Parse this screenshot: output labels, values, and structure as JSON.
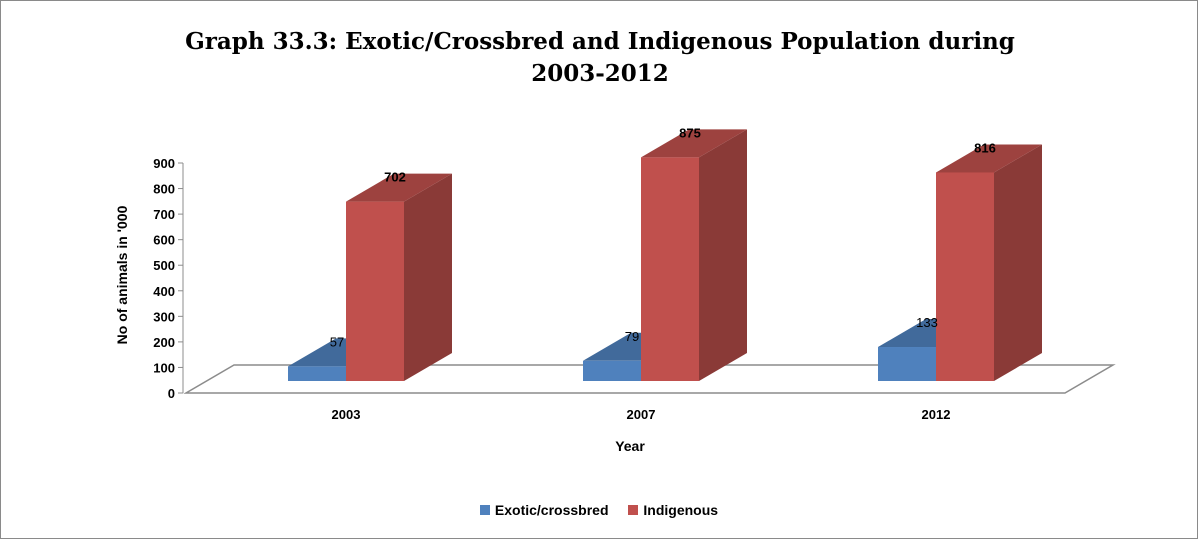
{
  "chart_data": {
    "type": "bar",
    "title": "Graph 33.3: Exotic/Crossbred and Indigenous  Population during 2003-2012",
    "xlabel": "Year",
    "ylabel": "No of animals in '000",
    "categories": [
      "2003",
      "2007",
      "2012"
    ],
    "series": [
      {
        "name": "Exotic/crossbred",
        "values": [
          57,
          79,
          133
        ],
        "color": "#4f81bd",
        "label_bold": false
      },
      {
        "name": "Indigenous",
        "values": [
          702,
          875,
          816
        ],
        "color": "#c0504d",
        "label_bold": true
      }
    ],
    "ylim": [
      0,
      900
    ],
    "yticks": [
      "0",
      "100",
      "200",
      "300",
      "400",
      "500",
      "600",
      "700",
      "800",
      "900"
    ],
    "grid": false,
    "legend_position": "bottom",
    "style": "3d-clustered-column"
  }
}
